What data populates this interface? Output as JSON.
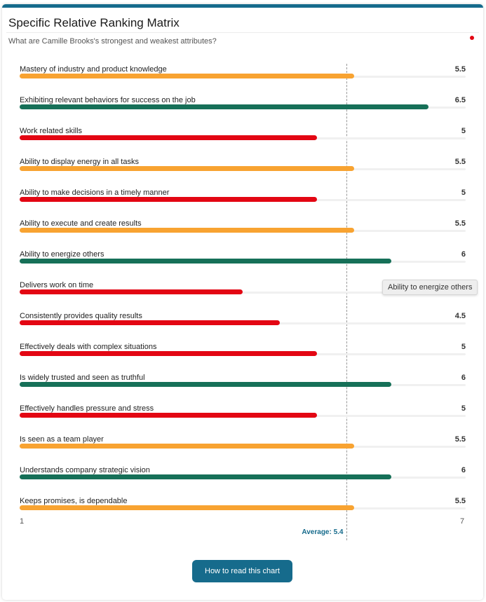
{
  "card": {
    "title": "Specific Relative Ranking Matrix",
    "subtitle": "What are Camille Brooks's strongest and weakest attributes?"
  },
  "colors": {
    "accent": "#166b8c",
    "status_dot": "#e30613",
    "high": "#167058",
    "mid": "#f8a331",
    "low": "#e30613"
  },
  "chart_data": {
    "type": "bar",
    "orientation": "horizontal",
    "xlim": [
      1,
      7
    ],
    "axis_min_label": "1",
    "axis_max_label": "7",
    "average": 5.4,
    "average_label": "Average: 5.4",
    "items": [
      {
        "label": "Mastery of industry and product knowledge",
        "value": 5.5,
        "display": "5.5",
        "level": "mid"
      },
      {
        "label": "Exhibiting relevant behaviors for success on the job",
        "value": 6.5,
        "display": "6.5",
        "level": "high"
      },
      {
        "label": "Work related skills",
        "value": 5,
        "display": "5",
        "level": "low"
      },
      {
        "label": "Ability to display energy in all tasks",
        "value": 5.5,
        "display": "5.5",
        "level": "mid"
      },
      {
        "label": "Ability to make decisions in a timely manner",
        "value": 5,
        "display": "5",
        "level": "low"
      },
      {
        "label": "Ability to execute and create results",
        "value": 5.5,
        "display": "5.5",
        "level": "mid"
      },
      {
        "label": "Ability to energize others",
        "value": 6,
        "display": "6",
        "level": "high"
      },
      {
        "label": "Delivers work on time",
        "value": 4,
        "display": "",
        "level": "low"
      },
      {
        "label": "Consistently provides quality results",
        "value": 4.5,
        "display": "4.5",
        "level": "low"
      },
      {
        "label": "Effectively deals with complex situations",
        "value": 5,
        "display": "5",
        "level": "low"
      },
      {
        "label": "Is widely trusted and seen as truthful",
        "value": 6,
        "display": "6",
        "level": "high"
      },
      {
        "label": "Effectively handles pressure and stress",
        "value": 5,
        "display": "5",
        "level": "low"
      },
      {
        "label": "Is seen as a team player",
        "value": 5.5,
        "display": "5.5",
        "level": "mid"
      },
      {
        "label": "Understands company strategic vision",
        "value": 6,
        "display": "6",
        "level": "high"
      },
      {
        "label": "Keeps promises, is dependable",
        "value": 5.5,
        "display": "5.5",
        "level": "mid"
      }
    ]
  },
  "tooltip": {
    "text": "Ability to energize others"
  },
  "help_button": {
    "label": "How to read this chart"
  }
}
